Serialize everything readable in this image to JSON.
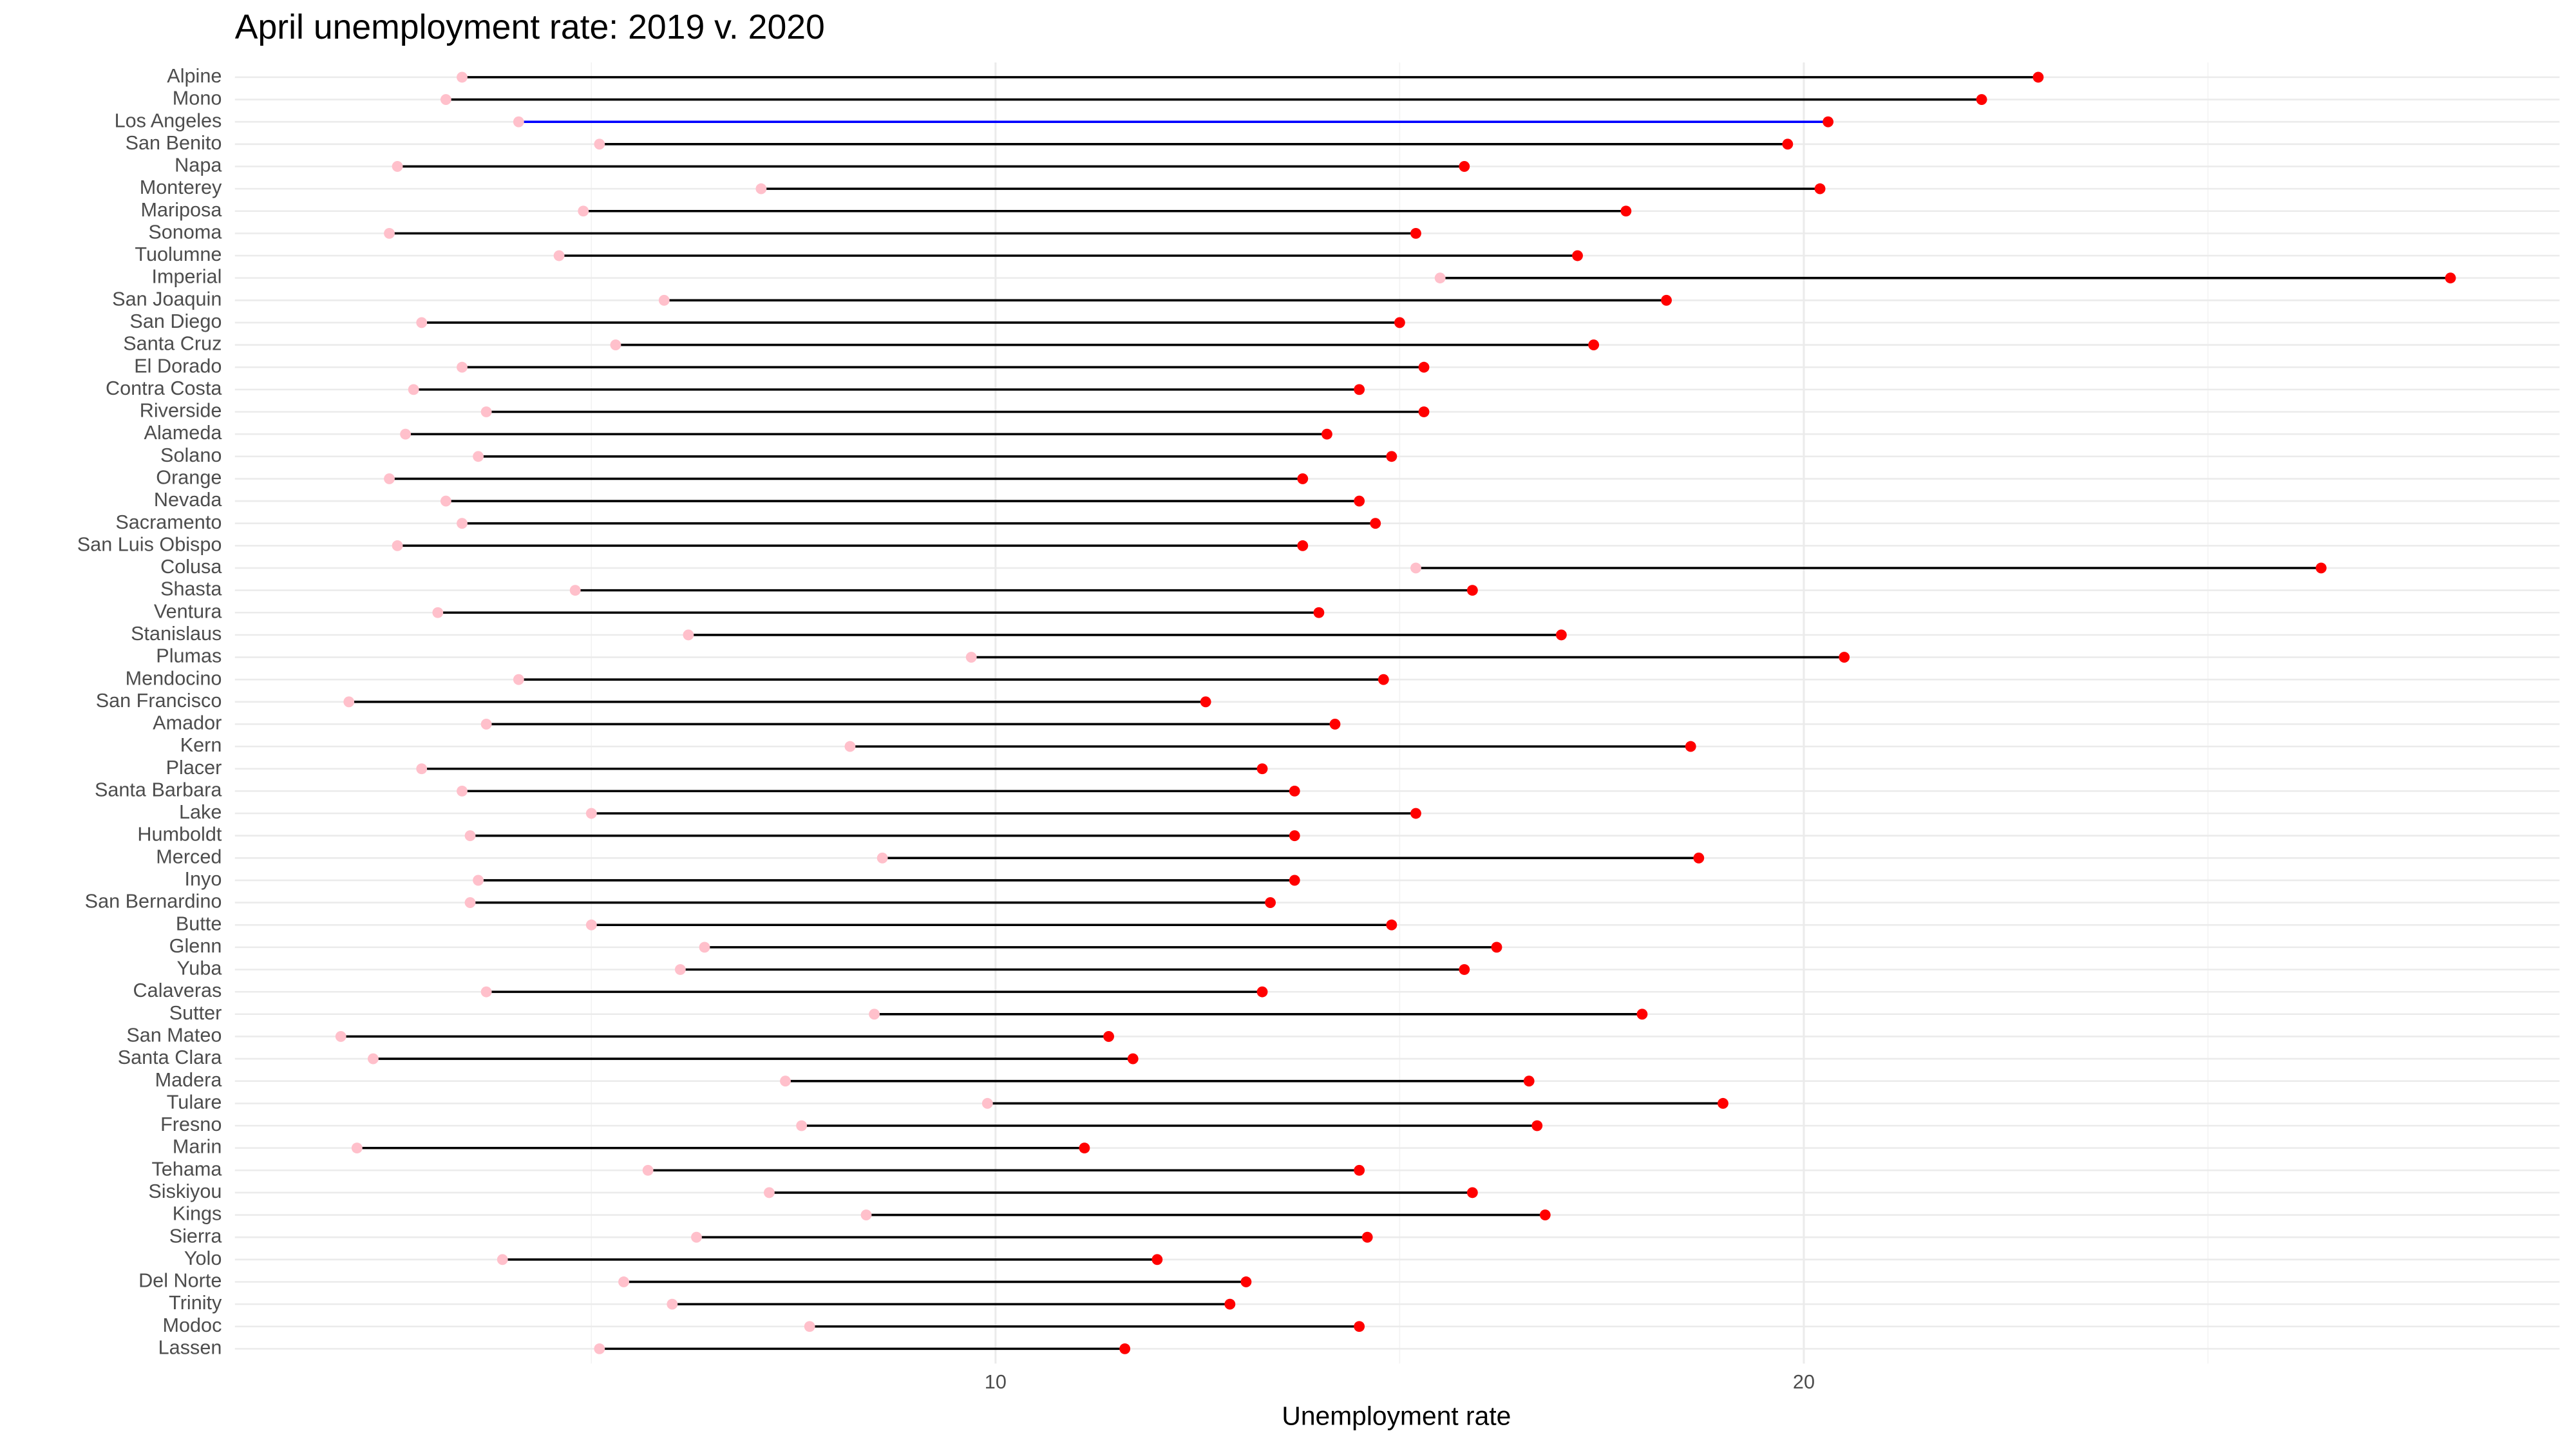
{
  "chart_data": {
    "type": "dumbbell",
    "title": "April unemployment rate: 2019 v. 2020",
    "x_label": "Unemployment rate",
    "categories": [
      "Alpine",
      "Mono",
      "Los Angeles",
      "San Benito",
      "Napa",
      "Monterey",
      "Mariposa",
      "Sonoma",
      "Tuolumne",
      "Imperial",
      "San Joaquin",
      "San Diego",
      "Santa Cruz",
      "El Dorado",
      "Contra Costa",
      "Riverside",
      "Alameda",
      "Solano",
      "Orange",
      "Nevada",
      "Sacramento",
      "San Luis Obispo",
      "Colusa",
      "Shasta",
      "Ventura",
      "Stanislaus",
      "Plumas",
      "Mendocino",
      "San Francisco",
      "Amador",
      "Kern",
      "Placer",
      "Santa Barbara",
      "Lake",
      "Humboldt",
      "Merced",
      "Inyo",
      "San Bernardino",
      "Butte",
      "Glenn",
      "Yuba",
      "Calaveras",
      "Sutter",
      "San Mateo",
      "Santa Clara",
      "Madera",
      "Tulare",
      "Fresno",
      "Marin",
      "Tehama",
      "Siskiyou",
      "Kings",
      "Sierra",
      "Yolo",
      "Del Norte",
      "Trinity",
      "Modoc",
      "Lassen"
    ],
    "series": [
      {
        "color": "#ffc0cb",
        "values": [
          3.4,
          3.2,
          4.1,
          5.1,
          2.6,
          7.1,
          4.9,
          2.5,
          4.6,
          15.5,
          5.9,
          2.9,
          5.3,
          3.4,
          2.8,
          3.7,
          2.7,
          3.6,
          2.5,
          3.2,
          3.4,
          2.6,
          15.2,
          4.8,
          3.1,
          6.2,
          9.7,
          4.1,
          2.0,
          3.7,
          8.2,
          2.9,
          3.4,
          5.0,
          3.5,
          8.6,
          3.6,
          3.5,
          5.0,
          6.4,
          6.1,
          3.7,
          8.5,
          1.9,
          2.3,
          7.4,
          9.9,
          7.6,
          2.1,
          5.7,
          7.2,
          8.4,
          6.3,
          3.9,
          5.4,
          6.0,
          7.7,
          5.1
        ]
      },
      {
        "color": "#ff0000",
        "values": [
          22.9,
          22.2,
          20.3,
          19.8,
          15.8,
          20.2,
          17.8,
          15.2,
          17.2,
          28.0,
          18.3,
          15.0,
          17.4,
          15.3,
          14.5,
          15.3,
          14.1,
          14.9,
          13.8,
          14.5,
          14.7,
          13.8,
          26.4,
          15.9,
          14.0,
          17.0,
          20.5,
          14.8,
          12.6,
          14.2,
          18.6,
          13.3,
          13.7,
          15.2,
          13.7,
          18.7,
          13.7,
          13.4,
          14.9,
          16.2,
          15.8,
          13.3,
          18.0,
          11.4,
          11.7,
          16.6,
          19.0,
          16.7,
          11.1,
          14.5,
          15.9,
          16.8,
          14.6,
          12.0,
          13.1,
          12.9,
          14.5,
          11.6
        ]
      }
    ],
    "segment_color": "#000000",
    "highlight_category": "Los Angeles",
    "highlight_color": "#0000ff",
    "xlim": [
      0.59,
      29.35
    ],
    "xticks": [
      10,
      20
    ],
    "minor_xticks": [
      5,
      15,
      25
    ],
    "grid": true
  }
}
